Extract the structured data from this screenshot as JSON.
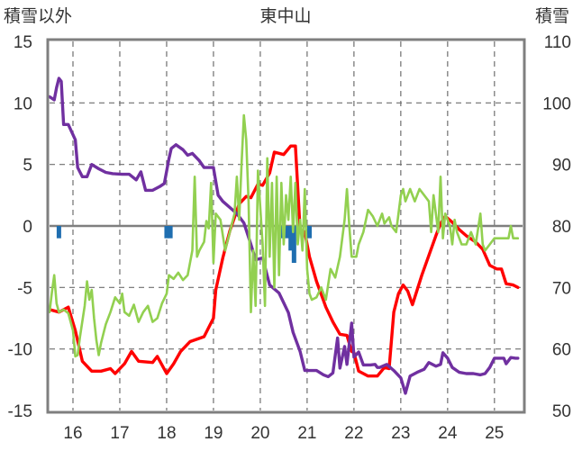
{
  "chart_data": {
    "type": "line",
    "title": "東中山",
    "ylabel_left": "積雪以外",
    "ylabel_right": "積雪",
    "xlim": [
      15.5,
      25.6
    ],
    "ylim_left": [
      -15,
      15
    ],
    "ylim_right": [
      50,
      110
    ],
    "x_ticks": [
      "16",
      "17",
      "18",
      "19",
      "20",
      "21",
      "22",
      "23",
      "24",
      "25"
    ],
    "y_ticks_left": [
      "15",
      "10",
      "5",
      "0",
      "-5",
      "-10",
      "-15"
    ],
    "y_ticks_right": [
      "110",
      "100",
      "90",
      "80",
      "70",
      "60",
      "50"
    ],
    "grid": true,
    "series": [
      {
        "color": "#ff0000",
        "axis": "left",
        "points": [
          [
            15.5,
            -6.8
          ],
          [
            15.7,
            -7.0
          ],
          [
            15.9,
            -6.6
          ],
          [
            16.05,
            -8.5
          ],
          [
            16.2,
            -11
          ],
          [
            16.4,
            -11.8
          ],
          [
            16.6,
            -11.8
          ],
          [
            16.8,
            -11.6
          ],
          [
            16.9,
            -12.0
          ],
          [
            17.1,
            -11.2
          ],
          [
            17.25,
            -10.2
          ],
          [
            17.4,
            -11.0
          ],
          [
            17.7,
            -11.1
          ],
          [
            17.8,
            -10.6
          ],
          [
            17.9,
            -11.3
          ],
          [
            18.0,
            -12.0
          ],
          [
            18.15,
            -11.2
          ],
          [
            18.3,
            -10.2
          ],
          [
            18.5,
            -9.4
          ],
          [
            18.8,
            -9.0
          ],
          [
            19.0,
            -7.5
          ],
          [
            19.05,
            -5.2
          ],
          [
            19.2,
            -2.6
          ],
          [
            19.35,
            -0.4
          ],
          [
            19.45,
            0.7
          ],
          [
            19.55,
            1.8
          ],
          [
            19.7,
            2.4
          ],
          [
            19.8,
            2.3
          ],
          [
            19.95,
            3.4
          ],
          [
            20.05,
            3.3
          ],
          [
            20.2,
            4.3
          ],
          [
            20.3,
            6.0
          ],
          [
            20.5,
            5.8
          ],
          [
            20.65,
            6.5
          ],
          [
            20.75,
            6.5
          ],
          [
            20.85,
            -0.3
          ],
          [
            20.95,
            -0.5
          ],
          [
            21.05,
            -2.5
          ],
          [
            21.2,
            -4.5
          ],
          [
            21.4,
            -6.6
          ],
          [
            21.55,
            -7.8
          ],
          [
            21.7,
            -8.8
          ],
          [
            21.85,
            -8.9
          ],
          [
            21.95,
            -10.2
          ],
          [
            22.0,
            -10.3
          ],
          [
            22.1,
            -11.8
          ],
          [
            22.3,
            -12.2
          ],
          [
            22.5,
            -12.2
          ],
          [
            22.65,
            -11.5
          ],
          [
            22.75,
            -11.6
          ],
          [
            22.85,
            -7.0
          ],
          [
            22.95,
            -5.5
          ],
          [
            23.05,
            -4.8
          ],
          [
            23.15,
            -5.3
          ],
          [
            23.25,
            -6.4
          ],
          [
            23.3,
            -5.8
          ],
          [
            23.45,
            -4.0
          ],
          [
            23.6,
            -2.4
          ],
          [
            23.75,
            -0.8
          ],
          [
            23.85,
            0.2
          ],
          [
            23.95,
            0.8
          ],
          [
            24.1,
            0.3
          ],
          [
            24.25,
            -0.3
          ],
          [
            24.4,
            -0.8
          ],
          [
            24.6,
            -1.3
          ],
          [
            24.75,
            -1.9
          ],
          [
            24.9,
            -3.2
          ],
          [
            25.05,
            -3.5
          ],
          [
            25.15,
            -3.5
          ],
          [
            25.25,
            -4.7
          ],
          [
            25.4,
            -4.8
          ],
          [
            25.5,
            -5.0
          ]
        ]
      },
      {
        "color": "#7030a0",
        "axis": "right",
        "points": [
          [
            15.5,
            101
          ],
          [
            15.6,
            100.5
          ],
          [
            15.65,
            102.5
          ],
          [
            15.7,
            104
          ],
          [
            15.75,
            103.5
          ],
          [
            15.8,
            96.5
          ],
          [
            15.9,
            96.5
          ],
          [
            16.05,
            94
          ],
          [
            16.1,
            89.5
          ],
          [
            16.2,
            88
          ],
          [
            16.3,
            88
          ],
          [
            16.4,
            90
          ],
          [
            16.55,
            89.3
          ],
          [
            16.7,
            88.7
          ],
          [
            16.85,
            88.5
          ],
          [
            17.05,
            88.4
          ],
          [
            17.2,
            88.4
          ],
          [
            17.35,
            87.5
          ],
          [
            17.45,
            88.8
          ],
          [
            17.55,
            85.8
          ],
          [
            17.7,
            85.8
          ],
          [
            17.85,
            86.4
          ],
          [
            17.95,
            86.9
          ],
          [
            18.05,
            90.9
          ],
          [
            18.1,
            92.6
          ],
          [
            18.2,
            93.2
          ],
          [
            18.35,
            92.4
          ],
          [
            18.45,
            91.5
          ],
          [
            18.55,
            91.8
          ],
          [
            18.7,
            90.6
          ],
          [
            18.8,
            89.5
          ],
          [
            18.9,
            89.5
          ],
          [
            19.0,
            89.5
          ],
          [
            19.1,
            85
          ],
          [
            19.2,
            84
          ],
          [
            19.35,
            83
          ],
          [
            19.5,
            82
          ],
          [
            19.65,
            80.5
          ],
          [
            19.8,
            77
          ],
          [
            19.9,
            74.5
          ],
          [
            20.05,
            74.8
          ],
          [
            20.2,
            70.4
          ],
          [
            20.4,
            69.1
          ],
          [
            20.5,
            67.5
          ],
          [
            20.6,
            65.9
          ],
          [
            20.7,
            62.7
          ],
          [
            20.85,
            59.6
          ],
          [
            20.95,
            56.5
          ],
          [
            21.05,
            56.5
          ],
          [
            21.2,
            56.5
          ],
          [
            21.35,
            55.8
          ],
          [
            21.45,
            55.5
          ],
          [
            21.55,
            56.1
          ],
          [
            21.65,
            61.8
          ],
          [
            21.7,
            56.9
          ],
          [
            21.8,
            60.4
          ],
          [
            21.85,
            57.5
          ],
          [
            21.95,
            64.2
          ],
          [
            22.0,
            58.7
          ],
          [
            22.1,
            59.5
          ],
          [
            22.2,
            57.4
          ],
          [
            22.35,
            57.4
          ],
          [
            22.45,
            57.5
          ],
          [
            22.5,
            57.0
          ],
          [
            22.55,
            57.0
          ],
          [
            22.7,
            57.5
          ],
          [
            22.85,
            56.5
          ],
          [
            23.0,
            55.3
          ],
          [
            23.1,
            52.8
          ],
          [
            23.2,
            55.6
          ],
          [
            23.35,
            56.2
          ],
          [
            23.5,
            56.7
          ],
          [
            23.6,
            57.8
          ],
          [
            23.75,
            57.2
          ],
          [
            23.85,
            57.5
          ],
          [
            23.9,
            59.4
          ],
          [
            24.0,
            58.5
          ],
          [
            24.1,
            57.0
          ],
          [
            24.25,
            56.2
          ],
          [
            24.4,
            56.0
          ],
          [
            24.55,
            56.0
          ],
          [
            24.7,
            55.8
          ],
          [
            24.8,
            56.0
          ],
          [
            24.9,
            57.0
          ],
          [
            25.0,
            58.5
          ],
          [
            25.1,
            58.5
          ],
          [
            25.2,
            58.5
          ],
          [
            25.25,
            57.6
          ],
          [
            25.35,
            58.6
          ],
          [
            25.45,
            58.5
          ],
          [
            25.5,
            58.5
          ]
        ]
      },
      {
        "color": "#92d050",
        "axis": "left",
        "points": [
          [
            15.5,
            -7.0
          ],
          [
            15.55,
            -5.4
          ],
          [
            15.6,
            -4.0
          ],
          [
            15.65,
            -6.3
          ],
          [
            15.7,
            -7.0
          ],
          [
            15.8,
            -6.8
          ],
          [
            15.9,
            -7.1
          ],
          [
            16.0,
            -8.5
          ],
          [
            16.05,
            -10.6
          ],
          [
            16.1,
            -10.5
          ],
          [
            16.15,
            -9.0
          ],
          [
            16.25,
            -6.5
          ],
          [
            16.3,
            -4.5
          ],
          [
            16.35,
            -6.0
          ],
          [
            16.4,
            -5.2
          ],
          [
            16.45,
            -7.5
          ],
          [
            16.5,
            -9.3
          ],
          [
            16.55,
            -10.5
          ],
          [
            16.6,
            -9.5
          ],
          [
            16.7,
            -8.0
          ],
          [
            16.8,
            -7.0
          ],
          [
            16.9,
            -5.8
          ],
          [
            17.0,
            -6.3
          ],
          [
            17.05,
            -5.5
          ],
          [
            17.1,
            -7.0
          ],
          [
            17.2,
            -7.3
          ],
          [
            17.3,
            -6.4
          ],
          [
            17.4,
            -7.8
          ],
          [
            17.5,
            -7.0
          ],
          [
            17.6,
            -6.5
          ],
          [
            17.7,
            -7.8
          ],
          [
            17.8,
            -7.5
          ],
          [
            17.9,
            -6.3
          ],
          [
            18.0,
            -5.5
          ],
          [
            18.05,
            -4.0
          ],
          [
            18.15,
            -4.3
          ],
          [
            18.25,
            -3.8
          ],
          [
            18.35,
            -4.4
          ],
          [
            18.45,
            -4.0
          ],
          [
            18.55,
            -2.0
          ],
          [
            18.6,
            4.0
          ],
          [
            18.65,
            -2.5
          ],
          [
            18.7,
            -2.0
          ],
          [
            18.8,
            -1.3
          ],
          [
            18.85,
            0.4
          ],
          [
            18.9,
            -0.2
          ],
          [
            18.95,
            3.5
          ],
          [
            19.0,
            -3.0
          ],
          [
            19.05,
            1.0
          ],
          [
            19.15,
            0.5
          ],
          [
            19.25,
            -2.0
          ],
          [
            19.35,
            -0.5
          ],
          [
            19.45,
            1.0
          ],
          [
            19.5,
            4.0
          ],
          [
            19.55,
            0.5
          ],
          [
            19.6,
            5.0
          ],
          [
            19.65,
            9.0
          ],
          [
            19.7,
            7.0
          ],
          [
            19.75,
            2.0
          ],
          [
            19.8,
            -7.0
          ],
          [
            19.85,
            -2.0
          ],
          [
            19.9,
            -6.5
          ],
          [
            19.95,
            4.5
          ],
          [
            20.05,
            -1.5
          ],
          [
            20.1,
            -6.5
          ],
          [
            20.15,
            5.5
          ],
          [
            20.2,
            -2.5
          ],
          [
            20.25,
            3.5
          ],
          [
            20.3,
            -5.0
          ],
          [
            20.35,
            4.0
          ],
          [
            20.4,
            -4.0
          ],
          [
            20.45,
            3.5
          ],
          [
            20.5,
            -1.5
          ],
          [
            20.55,
            2.5
          ],
          [
            20.6,
            0.5
          ],
          [
            20.65,
            4.0
          ],
          [
            20.7,
            -0.5
          ],
          [
            20.75,
            3.5
          ],
          [
            20.8,
            -1.5
          ],
          [
            20.85,
            0.5
          ],
          [
            20.9,
            -2.0
          ],
          [
            20.95,
            3.0
          ],
          [
            21.0,
            -3.5
          ],
          [
            21.05,
            -5.5
          ],
          [
            21.1,
            -6.0
          ],
          [
            21.2,
            -5.8
          ],
          [
            21.3,
            -5.0
          ],
          [
            21.4,
            -6.0
          ],
          [
            21.5,
            -3.5
          ],
          [
            21.6,
            -4.2
          ],
          [
            21.7,
            -2.5
          ],
          [
            21.8,
            0.5
          ],
          [
            21.85,
            3.0
          ],
          [
            21.9,
            0.0
          ],
          [
            21.95,
            -2.5
          ],
          [
            22.05,
            -2.5
          ],
          [
            22.1,
            -1.5
          ],
          [
            22.2,
            -0.5
          ],
          [
            22.3,
            1.3
          ],
          [
            22.4,
            0.8
          ],
          [
            22.5,
            0.0
          ],
          [
            22.6,
            1.0
          ],
          [
            22.65,
            0.2
          ],
          [
            22.75,
            0.7
          ],
          [
            22.8,
            0.0
          ],
          [
            22.9,
            -0.5
          ],
          [
            23.0,
            2.5
          ],
          [
            23.05,
            3.0
          ],
          [
            23.1,
            2.0
          ],
          [
            23.2,
            3.0
          ],
          [
            23.3,
            2.0
          ],
          [
            23.4,
            3.0
          ],
          [
            23.5,
            2.5
          ],
          [
            23.6,
            2.0
          ],
          [
            23.65,
            -0.5
          ],
          [
            23.7,
            2.5
          ],
          [
            23.75,
            1.0
          ],
          [
            23.8,
            -0.5
          ],
          [
            23.85,
            4.0
          ],
          [
            23.9,
            -1.0
          ],
          [
            23.95,
            1.0
          ],
          [
            24.05,
            0.0
          ],
          [
            24.1,
            -1.5
          ],
          [
            24.15,
            0.5
          ],
          [
            24.2,
            -0.5
          ],
          [
            24.3,
            -1.5
          ],
          [
            24.4,
            -1.5
          ],
          [
            24.5,
            -0.5
          ],
          [
            24.6,
            -1.5
          ],
          [
            24.7,
            1.0
          ],
          [
            24.75,
            -1.5
          ],
          [
            24.8,
            -2.0
          ],
          [
            24.9,
            -1.5
          ],
          [
            25.0,
            -1.0
          ],
          [
            25.1,
            -1.0
          ],
          [
            25.2,
            -1.0
          ],
          [
            25.3,
            -1.0
          ],
          [
            25.35,
            0.0
          ],
          [
            25.4,
            -1.0
          ],
          [
            25.5,
            -1.0
          ]
        ]
      },
      {
        "color": "#1f6eb0",
        "axis": "left",
        "type": "bar",
        "points": [
          [
            15.7,
            -1.0
          ],
          [
            18.0,
            -1.0
          ],
          [
            18.08,
            -1.0
          ],
          [
            20.45,
            -1.0
          ],
          [
            20.58,
            -1.0
          ],
          [
            20.65,
            -2.0
          ],
          [
            20.72,
            -3.0
          ],
          [
            21.05,
            -1.0
          ]
        ]
      }
    ]
  }
}
